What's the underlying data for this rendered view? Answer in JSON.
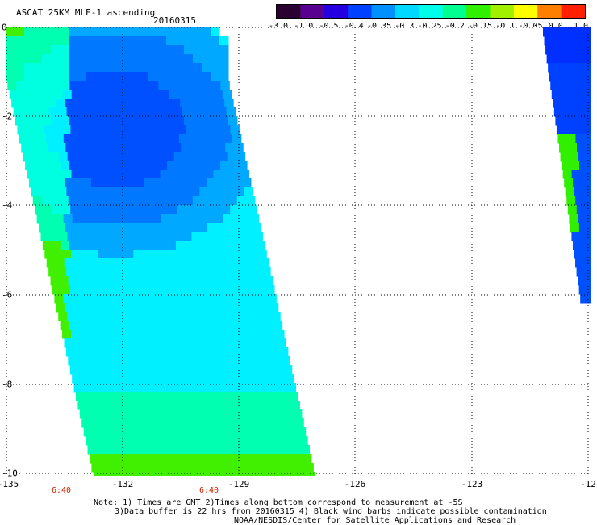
{
  "header": {
    "title": "ASCAT 25KM MLE-1 ascending",
    "date": "20160315"
  },
  "colorbar": {
    "labels": [
      "-3.0",
      "-1.0",
      "-0.5",
      "-0.4",
      "-0.35",
      "-0.3",
      "-0.25",
      "-0.2",
      "-0.15",
      "-0.1",
      "-0.05",
      "0.0",
      "1.0"
    ],
    "colors": [
      "#2a0030",
      "#5a0090",
      "#2400e0",
      "#0040ff",
      "#0090ff",
      "#00d8ff",
      "#00ffe8",
      "#00ff90",
      "#30f000",
      "#a0f000",
      "#ffff00",
      "#ff8000",
      "#ff2000"
    ]
  },
  "axes": {
    "lat_labels": [
      "0",
      "-2",
      "-4",
      "-6",
      "-8",
      "-10"
    ],
    "lon_labels": [
      "-135",
      "-132",
      "-129",
      "-126",
      "-123",
      "-12"
    ],
    "time_labels": [
      "6:40",
      "6:40"
    ]
  },
  "colors": {
    "grid": "#000000",
    "time_text": "#cc2200"
  },
  "notes": [
    "Note: 1) Times are GMT 2)Times along bottom correspond to measurement at -5S",
    "3)Data buffer is 22 hrs from 20160315 4) Black wind barbs indicate possible contamination",
    "NOAA/NESDIS/Center for Satellite Applications and Research"
  ]
}
